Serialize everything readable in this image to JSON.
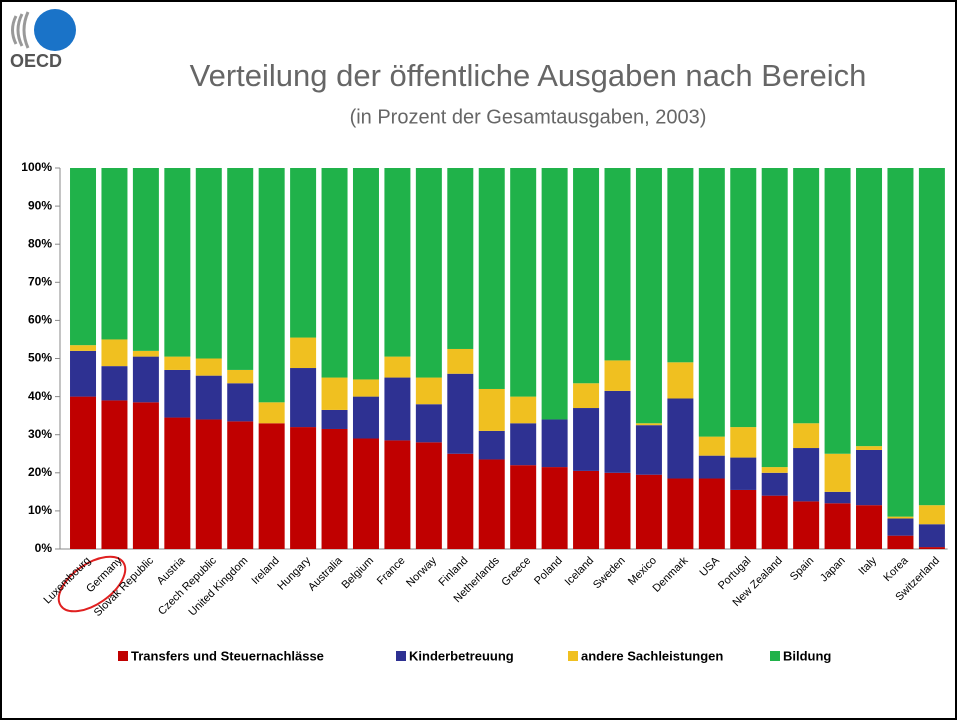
{
  "logo_text": "OECD",
  "chart_data": {
    "type": "stacked_bar",
    "title": "Verteilung der öffentliche Ausgaben nach Bereich",
    "subtitle": "(in Prozent der Gesamtausgaben, 2003)",
    "categories": [
      "Luxembourg",
      "Germany",
      "Slovak Republic",
      "Austria",
      "Czech Republic",
      "United Kingdom",
      "Ireland",
      "Hungary",
      "Australia",
      "Belgium",
      "France",
      "Norway",
      "Finland",
      "Netherlands",
      "Greece",
      "Poland",
      "Iceland",
      "Sweden",
      "Mexico",
      "Denmark",
      "USA",
      "Portugal",
      "New Zealand",
      "Spain",
      "Japan",
      "Italy",
      "Korea",
      "Switzerland"
    ],
    "series": [
      {
        "name": "Transfers und Steuernachlässe",
        "color": "#c00000",
        "values": [
          40,
          39,
          38.5,
          34.5,
          34,
          33.5,
          33,
          32,
          31.5,
          29,
          28.5,
          28,
          25,
          23.5,
          22,
          21.5,
          20.5,
          20,
          19.5,
          18.5,
          18.5,
          15.5,
          14,
          12.5,
          12,
          11.5,
          3.5,
          0.5
        ]
      },
      {
        "name": "Kinderbetreuung",
        "color": "#2e3192",
        "values": [
          12,
          9,
          12,
          12.5,
          11.5,
          10,
          0,
          15.5,
          5,
          11,
          16.5,
          10,
          21,
          7.5,
          11,
          12.5,
          16.5,
          21.5,
          13,
          21,
          6,
          8.5,
          6,
          14,
          3,
          14.5,
          4.5,
          6
        ]
      },
      {
        "name": "andere Sachleistungen",
        "color": "#f0c020",
        "values": [
          1.5,
          7,
          1.5,
          3.5,
          4.5,
          3.5,
          5.5,
          8,
          8.5,
          4.5,
          5.5,
          7,
          6.5,
          11,
          7,
          0,
          6.5,
          8,
          0.5,
          9.5,
          5,
          8,
          1.5,
          6.5,
          10,
          1,
          0.5,
          5
        ]
      },
      {
        "name": "Bildung",
        "color": "#20b24a",
        "values": [
          46.5,
          45,
          48,
          49.5,
          50,
          53,
          61.5,
          44.5,
          55,
          55.5,
          49.5,
          55,
          47.5,
          58,
          60,
          66,
          56.5,
          50.5,
          67,
          51,
          70.5,
          68,
          78.5,
          67,
          75,
          73,
          91.5,
          88.5
        ]
      }
    ],
    "ylim": [
      0,
      100
    ],
    "yticks": [
      {
        "value": 0,
        "label": "0%"
      },
      {
        "value": 10,
        "label": "10%"
      },
      {
        "value": 20,
        "label": "20%"
      },
      {
        "value": 30,
        "label": "30%"
      },
      {
        "value": 40,
        "label": "40%"
      },
      {
        "value": 50,
        "label": "50%"
      },
      {
        "value": 60,
        "label": "60%"
      },
      {
        "value": 70,
        "label": "70%"
      },
      {
        "value": 80,
        "label": "80%"
      },
      {
        "value": 90,
        "label": "90%"
      },
      {
        "value": 100,
        "label": "100%"
      }
    ],
    "legend": "bottom"
  }
}
